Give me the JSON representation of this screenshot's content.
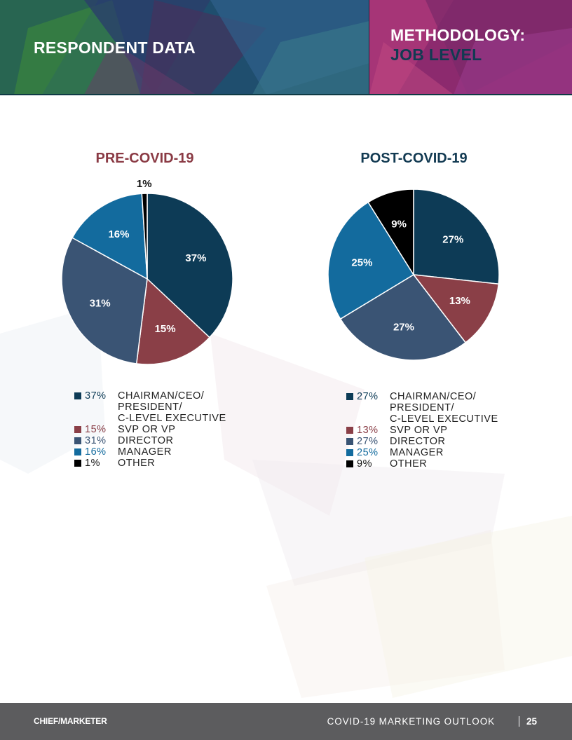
{
  "header": {
    "section_title": "RESPONDENT DATA",
    "method_title": "METHODOLOGY:",
    "method_subtitle": "JOB LEVEL"
  },
  "colors": {
    "chairman": "#0d3b56",
    "svp": "#8a3f47",
    "director": "#3a5474",
    "manager": "#136b9e",
    "other": "#000000",
    "pre_title": "#8a3a44",
    "post_title": "#123a52"
  },
  "chart_data": [
    {
      "type": "pie",
      "title": "PRE-COVID-19",
      "categories": [
        "CHAIRMAN/CEO/ PRESIDENT/ C-LEVEL EXECUTIVE",
        "SVP OR VP",
        "DIRECTOR",
        "MANAGER",
        "OTHER"
      ],
      "values": [
        37,
        15,
        31,
        16,
        1
      ],
      "labels": [
        "37%",
        "15%",
        "31%",
        "16%",
        "1%"
      ],
      "legend": [
        {
          "pct": "37%",
          "label": "CHAIRMAN/CEO/\nPRESIDENT/\nC-LEVEL    EXECUTIVE"
        },
        {
          "pct": "15%",
          "label": "SVP OR VP"
        },
        {
          "pct": "31%",
          "label": "DIRECTOR"
        },
        {
          "pct": "16%",
          "label": "MANAGER"
        },
        {
          "pct": "1%",
          "label": "OTHER"
        }
      ]
    },
    {
      "type": "pie",
      "title": "POST-COVID-19",
      "categories": [
        "CHAIRMAN/CEO/ PRESIDENT/ C-LEVEL EXECUTIVE",
        "SVP OR VP",
        "DIRECTOR",
        "MANAGER",
        "OTHER"
      ],
      "values": [
        27,
        13,
        27,
        25,
        9
      ],
      "labels": [
        "27%",
        "13%",
        "27%",
        "25%",
        "9%"
      ],
      "legend": [
        {
          "pct": "27%",
          "label": "CHAIRMAN/CEO/\nPRESIDENT/\nC-LEVEL EXECUTIVE"
        },
        {
          "pct": "13%",
          "label": "SVP OR VP"
        },
        {
          "pct": "27%",
          "label": "DIRECTOR"
        },
        {
          "pct": "25%",
          "label": "MANAGER"
        },
        {
          "pct": "9%",
          "label": "OTHER"
        }
      ]
    }
  ],
  "footer": {
    "logo_text": "CHIEF/MARKETER",
    "report_name": "COVID-19 MARKETING OUTLOOK",
    "page_number": "25"
  }
}
